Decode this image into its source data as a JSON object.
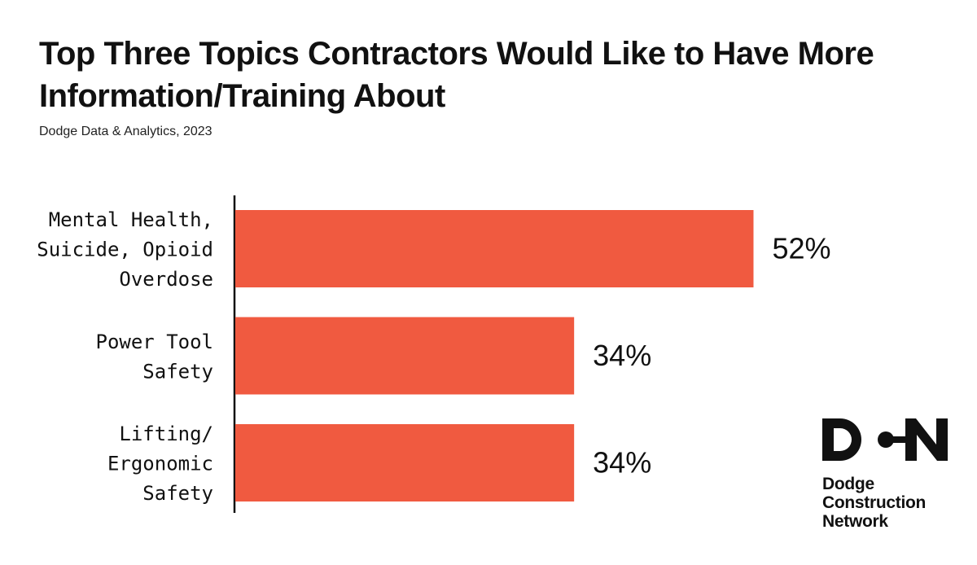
{
  "title_lines": [
    "Top Three Topics Contractors Would Like to Have More",
    "Information/Training About"
  ],
  "subtitle": "Dodge Data & Analytics, 2023",
  "logo": {
    "lines": [
      "Dodge",
      "Construction",
      "Network"
    ]
  },
  "colors": {
    "bar": "#f05a40",
    "axis": "#111111",
    "text": "#111111"
  },
  "chart_data": {
    "type": "bar",
    "orientation": "horizontal",
    "title": "Top Three Topics Contractors Would Like to Have More Information/Training About",
    "categories": [
      [
        "Mental Health,",
        "Suicide, Opioid",
        "Overdose"
      ],
      [
        "Power Tool",
        "Safety"
      ],
      [
        "Lifting/",
        "Ergonomic",
        "Safety"
      ]
    ],
    "values": [
      52,
      34,
      34
    ],
    "value_labels": [
      "52%",
      "34%",
      "34%"
    ],
    "unit": "%",
    "xlim": [
      0,
      100
    ],
    "grid": false,
    "legend": "none"
  }
}
